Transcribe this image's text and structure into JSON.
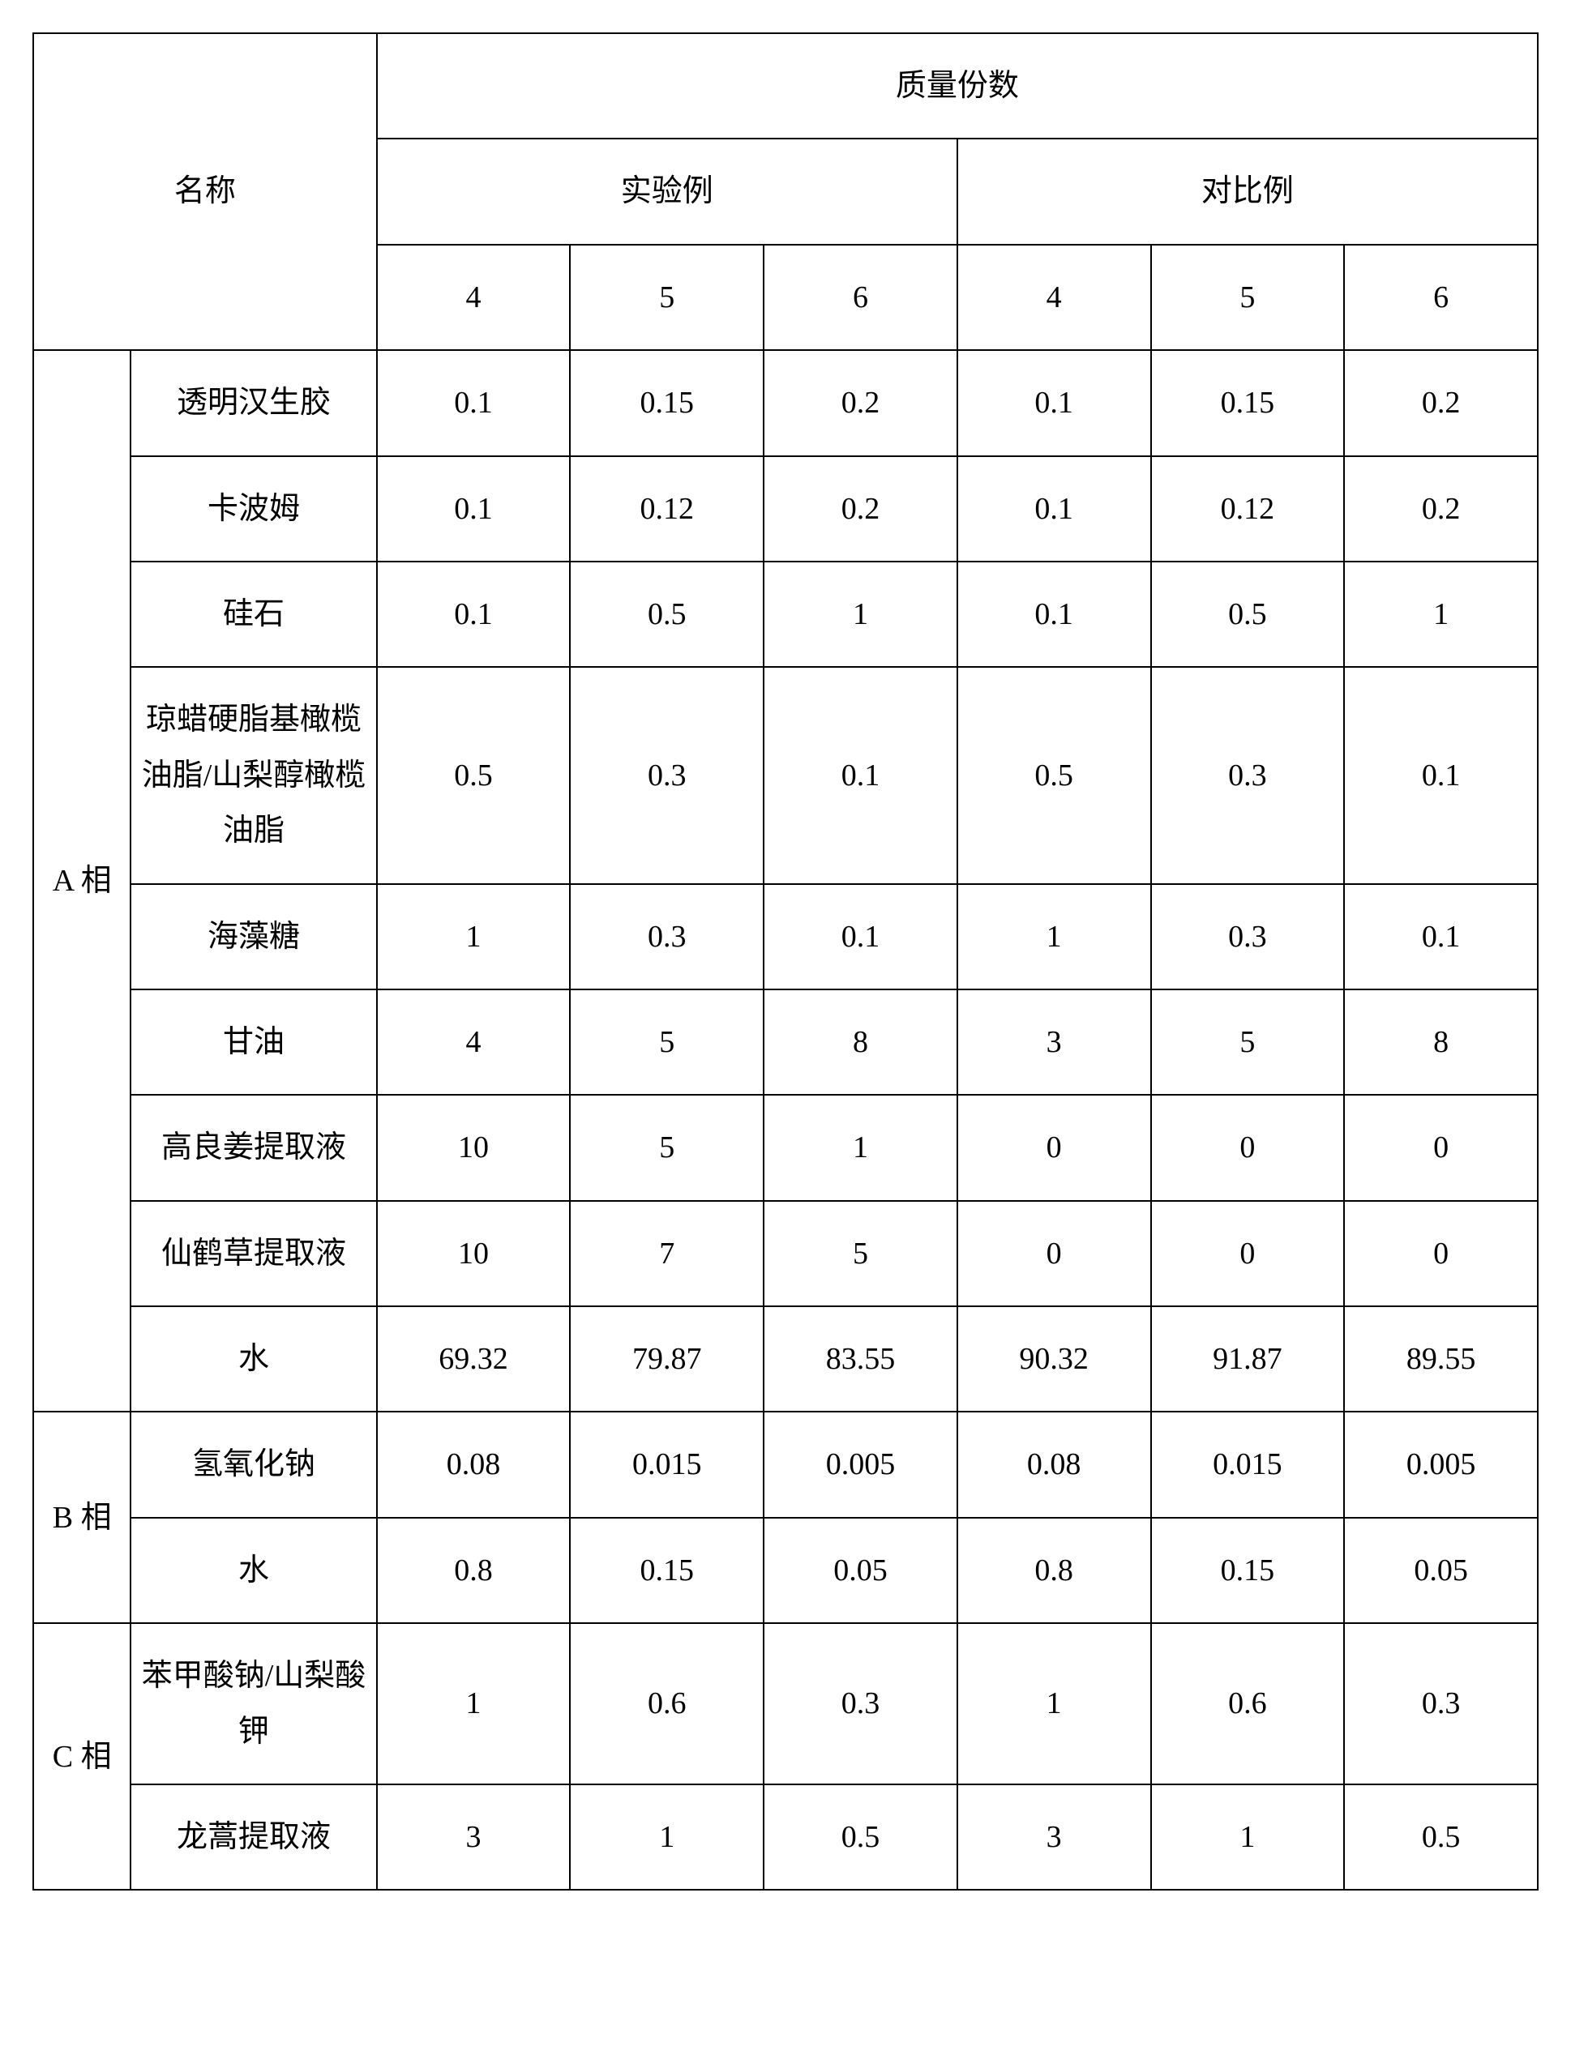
{
  "header": {
    "name": "名称",
    "massfrac": "质量份数",
    "exp": "实验例",
    "ctrl": "对比例",
    "col1": "4",
    "col2": "5",
    "col3": "6",
    "col4": "4",
    "col5": "5",
    "col6": "6"
  },
  "phases": {
    "a": "A 相",
    "b": "B 相",
    "c": "C 相"
  },
  "rows": {
    "r1": {
      "name": "透明汉生胶",
      "v1": "0.1",
      "v2": "0.15",
      "v3": "0.2",
      "v4": "0.1",
      "v5": "0.15",
      "v6": "0.2"
    },
    "r2": {
      "name": "卡波姆",
      "v1": "0.1",
      "v2": "0.12",
      "v3": "0.2",
      "v4": "0.1",
      "v5": "0.12",
      "v6": "0.2"
    },
    "r3": {
      "name": "硅石",
      "v1": "0.1",
      "v2": "0.5",
      "v3": "1",
      "v4": "0.1",
      "v5": "0.5",
      "v6": "1"
    },
    "r4": {
      "name": "琼蜡硬脂基橄榄油脂/山梨醇橄榄油脂",
      "v1": "0.5",
      "v2": "0.3",
      "v3": "0.1",
      "v4": "0.5",
      "v5": "0.3",
      "v6": "0.1"
    },
    "r5": {
      "name": "海藻糖",
      "v1": "1",
      "v2": "0.3",
      "v3": "0.1",
      "v4": "1",
      "v5": "0.3",
      "v6": "0.1"
    },
    "r6": {
      "name": "甘油",
      "v1": "4",
      "v2": "5",
      "v3": "8",
      "v4": "3",
      "v5": "5",
      "v6": "8"
    },
    "r7": {
      "name": "高良姜提取液",
      "v1": "10",
      "v2": "5",
      "v3": "1",
      "v4": "0",
      "v5": "0",
      "v6": "0"
    },
    "r8": {
      "name": "仙鹤草提取液",
      "v1": "10",
      "v2": "7",
      "v3": "5",
      "v4": "0",
      "v5": "0",
      "v6": "0"
    },
    "r9": {
      "name": "水",
      "v1": "69.32",
      "v2": "79.87",
      "v3": "83.55",
      "v4": "90.32",
      "v5": "91.87",
      "v6": "89.55"
    },
    "r10": {
      "name": "氢氧化钠",
      "v1": "0.08",
      "v2": "0.015",
      "v3": "0.005",
      "v4": "0.08",
      "v5": "0.015",
      "v6": "0.005"
    },
    "r11": {
      "name": "水",
      "v1": "0.8",
      "v2": "0.15",
      "v3": "0.05",
      "v4": "0.8",
      "v5": "0.15",
      "v6": "0.05"
    },
    "r12": {
      "name": "苯甲酸钠/山梨酸钾",
      "v1": "1",
      "v2": "0.6",
      "v3": "0.3",
      "v4": "1",
      "v5": "0.6",
      "v6": "0.3"
    },
    "r13": {
      "name": "龙蒿提取液",
      "v1": "3",
      "v2": "1",
      "v3": "0.5",
      "v4": "3",
      "v5": "1",
      "v6": "0.5"
    }
  }
}
